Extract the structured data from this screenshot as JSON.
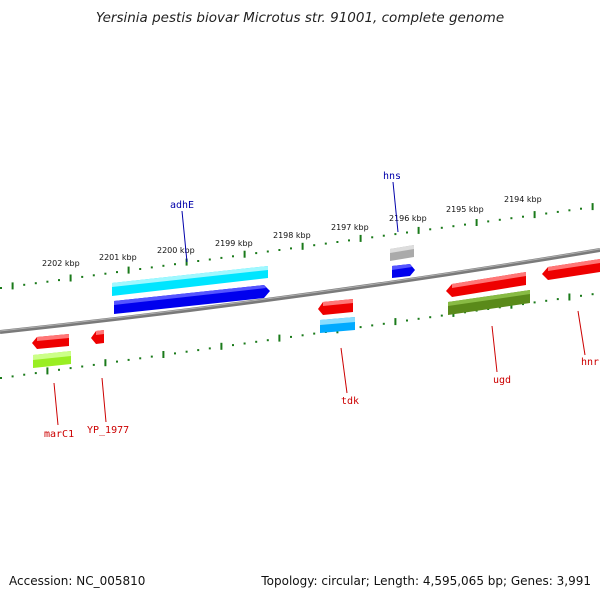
{
  "title": "Yersinia pestis biovar Microtus str. 91001, complete genome",
  "footer": {
    "accession": "Accession: NC_005810",
    "summary": "Topology: circular; Length: 4,595,065 bp; Genes: 3,991"
  },
  "kbp_labels": [
    "2202 kbp",
    "2201 kbp",
    "2200 kbp",
    "2199 kbp",
    "2198 kbp",
    "2197 kbp",
    "2196 kbp",
    "2195 kbp",
    "2194 kbp"
  ],
  "gene_labels_top": [
    "adhE",
    "hns"
  ],
  "gene_labels_bottom": [
    "marC1",
    "YP_1977",
    "tdk",
    "ugd",
    "hnr"
  ],
  "colors": {
    "backbone": "#7a7a7a",
    "ticks": "#1a7a1a",
    "red": "#ee0000",
    "cyan": "#00e5ff",
    "blue": "#0000ee",
    "sky": "#00aaff",
    "olive": "#5a8a1a",
    "lime": "#99ee22",
    "gray": "#aaaaaa",
    "top_label": "#0000aa",
    "bottom_label": "#cc0000"
  }
}
